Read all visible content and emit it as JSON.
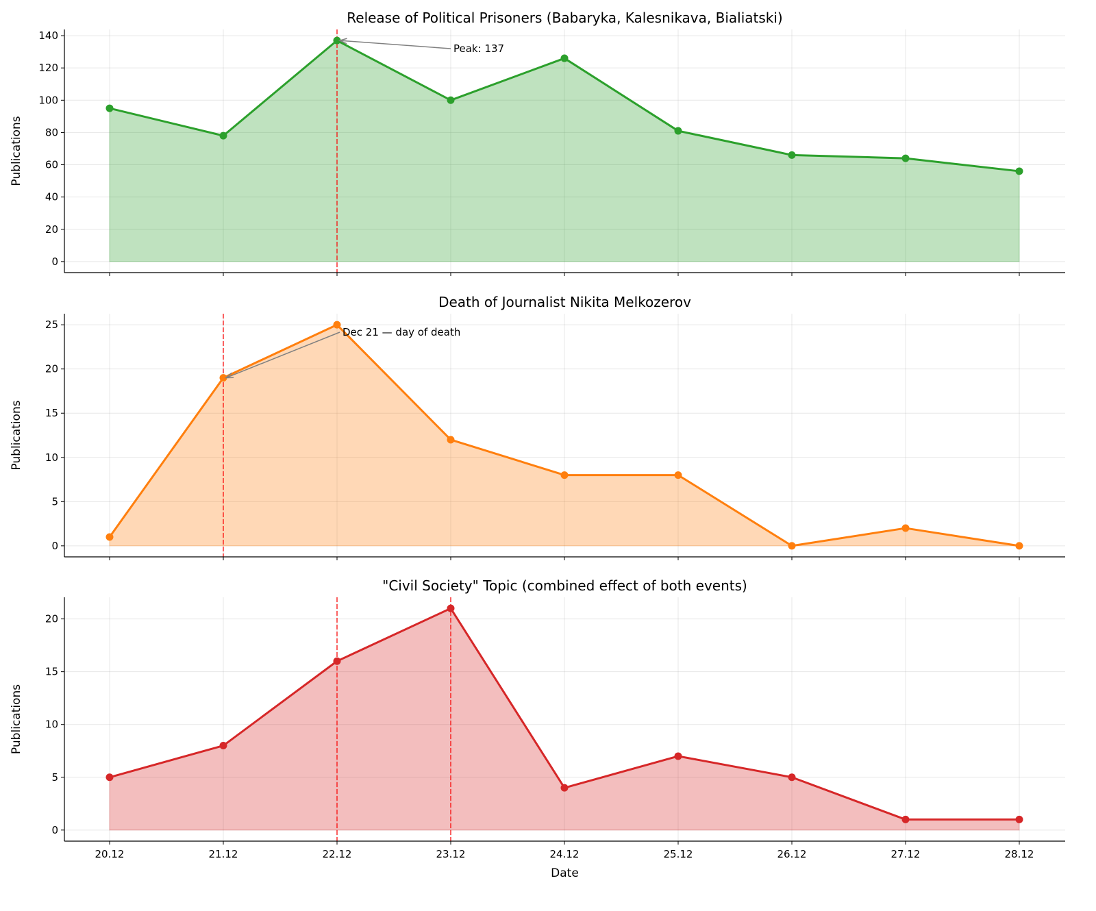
{
  "chart_data": [
    {
      "type": "area",
      "title": "Release of Political Prisoners (Babaryka, Kalesnikava, Bialiatski)",
      "xlabel": "",
      "ylabel": "Publications",
      "categories": [
        "20.12",
        "21.12",
        "22.12",
        "23.12",
        "24.12",
        "25.12",
        "26.12",
        "27.12",
        "28.12"
      ],
      "values": [
        95,
        78,
        137,
        100,
        126,
        81,
        66,
        64,
        56
      ],
      "color": "#2ca02c",
      "ylim": [
        -6.85,
        143.85
      ],
      "yticks": [
        0,
        20,
        40,
        60,
        80,
        100,
        120,
        140
      ],
      "event_lines": [
        "22.12"
      ],
      "annotation": {
        "text": "Peak: 137",
        "target": "22.12",
        "value": 137
      },
      "grid": true
    },
    {
      "type": "area",
      "title": "Death of Journalist Nikita Melkozerov",
      "xlabel": "",
      "ylabel": "Publications",
      "categories": [
        "20.12",
        "21.12",
        "22.12",
        "23.12",
        "24.12",
        "25.12",
        "26.12",
        "27.12",
        "28.12"
      ],
      "values": [
        1,
        19,
        25,
        12,
        8,
        8,
        0,
        2,
        0
      ],
      "color": "#ff7f0e",
      "ylim": [
        -1.25,
        26.25
      ],
      "yticks": [
        0,
        5,
        10,
        15,
        20,
        25
      ],
      "event_lines": [
        "21.12"
      ],
      "annotation": {
        "text": "Dec 21 — day of death",
        "target": "21.12",
        "value": 19
      },
      "grid": true
    },
    {
      "type": "area",
      "title": "\"Civil Society\" Topic (combined effect of both events)",
      "xlabel": "Date",
      "ylabel": "Publications",
      "categories": [
        "20.12",
        "21.12",
        "22.12",
        "23.12",
        "24.12",
        "25.12",
        "26.12",
        "27.12",
        "28.12"
      ],
      "values": [
        5,
        8,
        16,
        21,
        4,
        7,
        5,
        1,
        1
      ],
      "color": "#d62728",
      "ylim": [
        -1.05,
        22.05
      ],
      "yticks": [
        0,
        5,
        10,
        15,
        20
      ],
      "event_lines": [
        "22.12",
        "23.12"
      ],
      "annotation": null,
      "grid": true
    }
  ]
}
